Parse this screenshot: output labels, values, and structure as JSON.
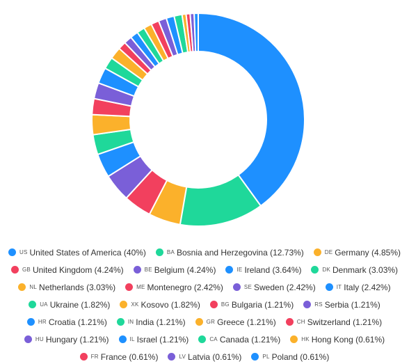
{
  "chart_data": {
    "type": "pie",
    "variant": "donut",
    "legend_position": "bottom",
    "series": [
      {
        "code": "US",
        "name": "United States of America",
        "value": 40,
        "label": "United States of America (40%)",
        "color": "#1e90ff"
      },
      {
        "code": "BA",
        "name": "Bosnia and Herzegovina",
        "value": 12.73,
        "label": "Bosnia and Herzegovina (12.73%)",
        "color": "#1fd89a"
      },
      {
        "code": "DE",
        "name": "Germany",
        "value": 4.85,
        "label": "Germany (4.85%)",
        "color": "#fbb12b"
      },
      {
        "code": "GB",
        "name": "United Kingdom",
        "value": 4.24,
        "label": "United Kingdom (4.24%)",
        "color": "#f2405e"
      },
      {
        "code": "BE",
        "name": "Belgium",
        "value": 4.24,
        "label": "Belgium (4.24%)",
        "color": "#7a5fd8"
      },
      {
        "code": "IE",
        "name": "Ireland",
        "value": 3.64,
        "label": "Ireland (3.64%)",
        "color": "#1e90ff"
      },
      {
        "code": "DK",
        "name": "Denmark",
        "value": 3.03,
        "label": "Denmark (3.03%)",
        "color": "#1fd89a"
      },
      {
        "code": "NL",
        "name": "Netherlands",
        "value": 3.03,
        "label": "Netherlands (3.03%)",
        "color": "#fbb12b"
      },
      {
        "code": "ME",
        "name": "Montenegro",
        "value": 2.42,
        "label": "Montenegro (2.42%)",
        "color": "#f2405e"
      },
      {
        "code": "SE",
        "name": "Sweden",
        "value": 2.42,
        "label": "Sweden (2.42%)",
        "color": "#7a5fd8"
      },
      {
        "code": "IT",
        "name": "Italy",
        "value": 2.42,
        "label": "Italy (2.42%)",
        "color": "#1e90ff"
      },
      {
        "code": "UA",
        "name": "Ukraine",
        "value": 1.82,
        "label": "Ukraine (1.82%)",
        "color": "#1fd89a"
      },
      {
        "code": "XK",
        "name": "Kosovo",
        "value": 1.82,
        "label": "Kosovo (1.82%)",
        "color": "#fbb12b"
      },
      {
        "code": "BG",
        "name": "Bulgaria",
        "value": 1.21,
        "label": "Bulgaria (1.21%)",
        "color": "#f2405e"
      },
      {
        "code": "RS",
        "name": "Serbia",
        "value": 1.21,
        "label": "Serbia (1.21%)",
        "color": "#7a5fd8"
      },
      {
        "code": "HR",
        "name": "Croatia",
        "value": 1.21,
        "label": "Croatia (1.21%)",
        "color": "#1e90ff"
      },
      {
        "code": "IN",
        "name": "India",
        "value": 1.21,
        "label": "India (1.21%)",
        "color": "#1fd89a"
      },
      {
        "code": "GR",
        "name": "Greece",
        "value": 1.21,
        "label": "Greece (1.21%)",
        "color": "#fbb12b"
      },
      {
        "code": "CH",
        "name": "Switzerland",
        "value": 1.21,
        "label": "Switzerland (1.21%)",
        "color": "#f2405e"
      },
      {
        "code": "HU",
        "name": "Hungary",
        "value": 1.21,
        "label": "Hungary (1.21%)",
        "color": "#7a5fd8"
      },
      {
        "code": "IL",
        "name": "Israel",
        "value": 1.21,
        "label": "Israel (1.21%)",
        "color": "#1e90ff"
      },
      {
        "code": "CA",
        "name": "Canada",
        "value": 1.21,
        "label": "Canada (1.21%)",
        "color": "#1fd89a"
      },
      {
        "code": "HK",
        "name": "Hong Kong",
        "value": 0.61,
        "label": "Hong Kong (0.61%)",
        "color": "#fbb12b"
      },
      {
        "code": "FR",
        "name": "France",
        "value": 0.61,
        "label": "France (0.61%)",
        "color": "#f2405e"
      },
      {
        "code": "LV",
        "name": "Latvia",
        "value": 0.61,
        "label": "Latvia (0.61%)",
        "color": "#7a5fd8"
      },
      {
        "code": "PL",
        "name": "Poland",
        "value": 0.61,
        "label": "Poland (0.61%)",
        "color": "#1e90ff"
      }
    ]
  }
}
